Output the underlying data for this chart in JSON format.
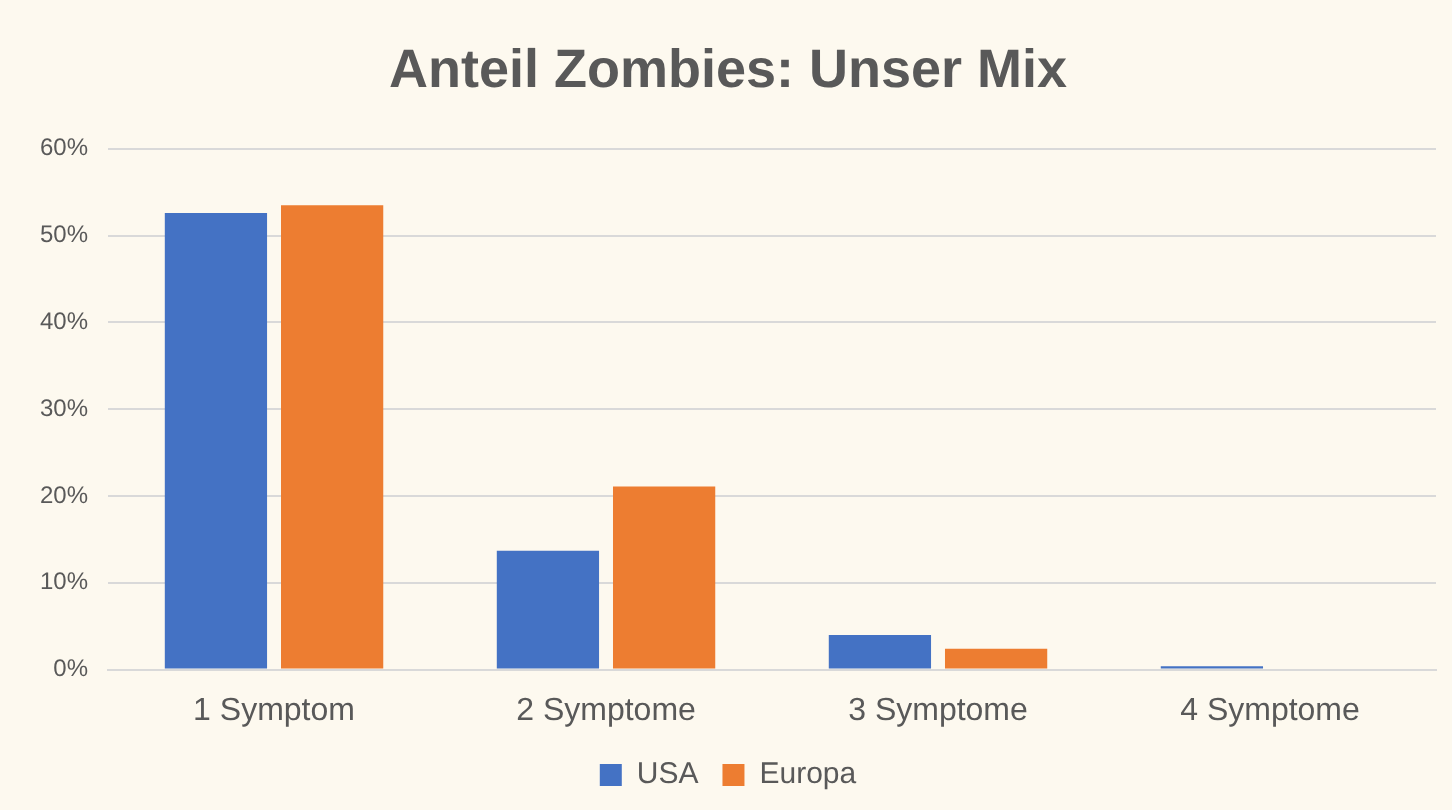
{
  "chart_data": {
    "type": "bar",
    "title": "Anteil Zombies: Unser Mix",
    "categories": [
      "1 Symptom",
      "2 Symptome",
      "3 Symptome",
      "4 Symptome"
    ],
    "series": [
      {
        "name": "USA",
        "color": "#4472c4",
        "values": [
          52.6,
          13.7,
          4.0,
          0.4
        ]
      },
      {
        "name": "Europa",
        "color": "#ed7d31",
        "values": [
          53.5,
          21.1,
          2.4,
          0
        ]
      }
    ],
    "ylim": [
      0,
      60
    ],
    "yticks": [
      {
        "value": 0,
        "label": "0%"
      },
      {
        "value": 10,
        "label": "10%"
      },
      {
        "value": 20,
        "label": "20%"
      },
      {
        "value": 30,
        "label": "30%"
      },
      {
        "value": 40,
        "label": "40%"
      },
      {
        "value": 50,
        "label": "50%"
      },
      {
        "value": 60,
        "label": "60%"
      }
    ],
    "grid": "y",
    "legend": "bottom"
  }
}
